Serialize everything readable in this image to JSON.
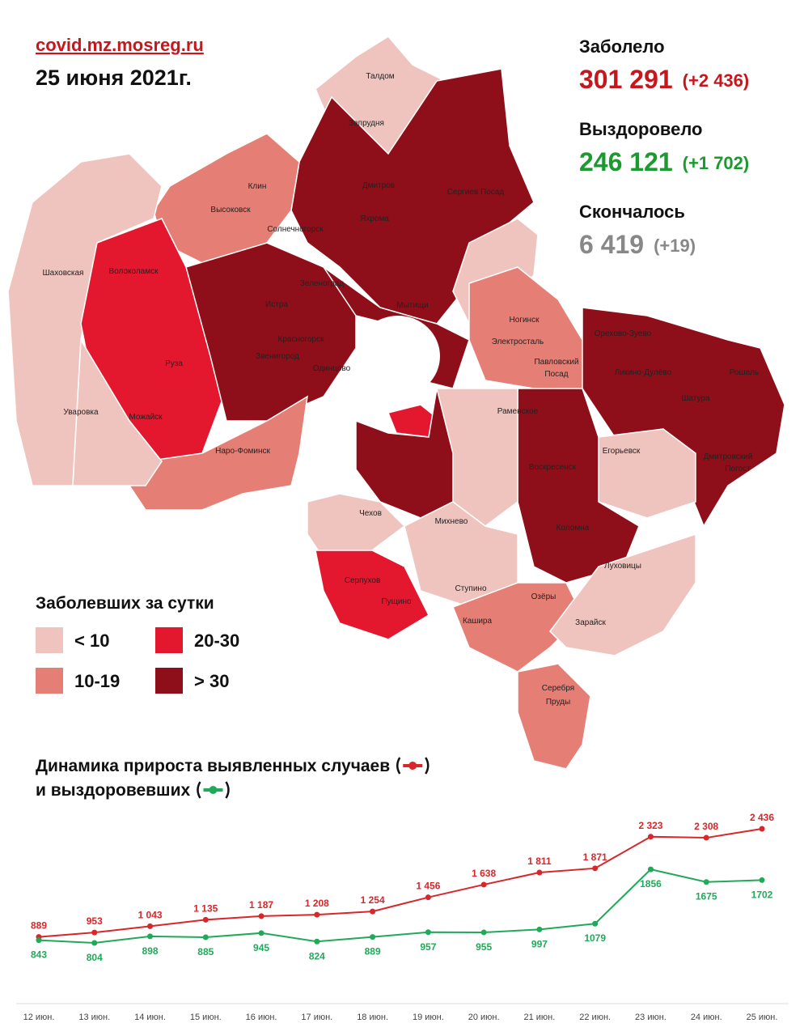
{
  "header": {
    "site": "covid.mz.mosreg.ru",
    "date": "25 июня 2021г."
  },
  "stats": [
    {
      "label": "Заболело",
      "value": "301 291",
      "delta": "(+2 436)"
    },
    {
      "label": "Выздоровело",
      "value": "246 121",
      "delta": "(+1 702)"
    },
    {
      "label": "Скончалось",
      "value": "6 419",
      "delta": "(+19)"
    }
  ],
  "legend": {
    "title": "Заболевших за сутки",
    "items": [
      {
        "label": "< 10",
        "color": "#f0c4be"
      },
      {
        "label": "10-19",
        "color": "#e57f76"
      },
      {
        "label": "20-30",
        "color": "#e3182f"
      },
      {
        "label": "> 30",
        "color": "#8e0f1a"
      }
    ]
  },
  "map": {
    "labels": [
      "Талдом",
      "Запрудня",
      "Дмитров",
      "Сергиев Посад",
      "Клин",
      "Высоковск",
      "Яхрома",
      "Солнечногорск",
      "Шаховская",
      "Волоколамск",
      "Зеленоград",
      "Истра",
      "Мытищи",
      "Красногорск",
      "Звенигород",
      "Одинцово",
      "Руза",
      "Ногинск",
      "Электросталь",
      "Павловский",
      "Посад",
      "Орехово-Зуево",
      "Ликино-Дулёво",
      "Рошаль",
      "Шатура",
      "Уваровка",
      "Можайск",
      "Наро-Фоминск",
      "Раменское",
      "Воскресенск",
      "Егорьевск",
      "Дмитровский",
      "Погост",
      "Чехов",
      "Михнево",
      "Коломна",
      "Луховицы",
      "Серпухов",
      "Пущино",
      "Ступино",
      "Озёры",
      "Кашира",
      "Зарайск",
      "Серебря",
      "Пруды"
    ]
  },
  "chart_data": {
    "type": "line",
    "title": "Динамика прироста выявленных случаев",
    "subtitle": "и выздоровевших",
    "categories": [
      "12 июн.",
      "13 июн.",
      "14 июн.",
      "15 июн.",
      "16 июн.",
      "17 июн.",
      "18 июн.",
      "19 июн.",
      "20 июн.",
      "21 июн.",
      "22 июн.",
      "23 июн.",
      "24 июн.",
      "25 июн."
    ],
    "series": [
      {
        "color": "#d9262a",
        "values": [
          889,
          953,
          1043,
          1135,
          1187,
          1208,
          1254,
          1456,
          1638,
          1811,
          1871,
          2323,
          2308,
          2436
        ],
        "value_labels": [
          "889",
          "953",
          "1 043",
          "1 135",
          "1 187",
          "1 208",
          "1 254",
          "1 456",
          "1 638",
          "1 811",
          "1 871",
          "2 323",
          "2 308",
          "2 436"
        ]
      },
      {
        "color": "#21a95a",
        "values": [
          843,
          804,
          898,
          885,
          945,
          824,
          889,
          957,
          955,
          997,
          1079,
          1856,
          1675,
          1702
        ]
      }
    ]
  }
}
